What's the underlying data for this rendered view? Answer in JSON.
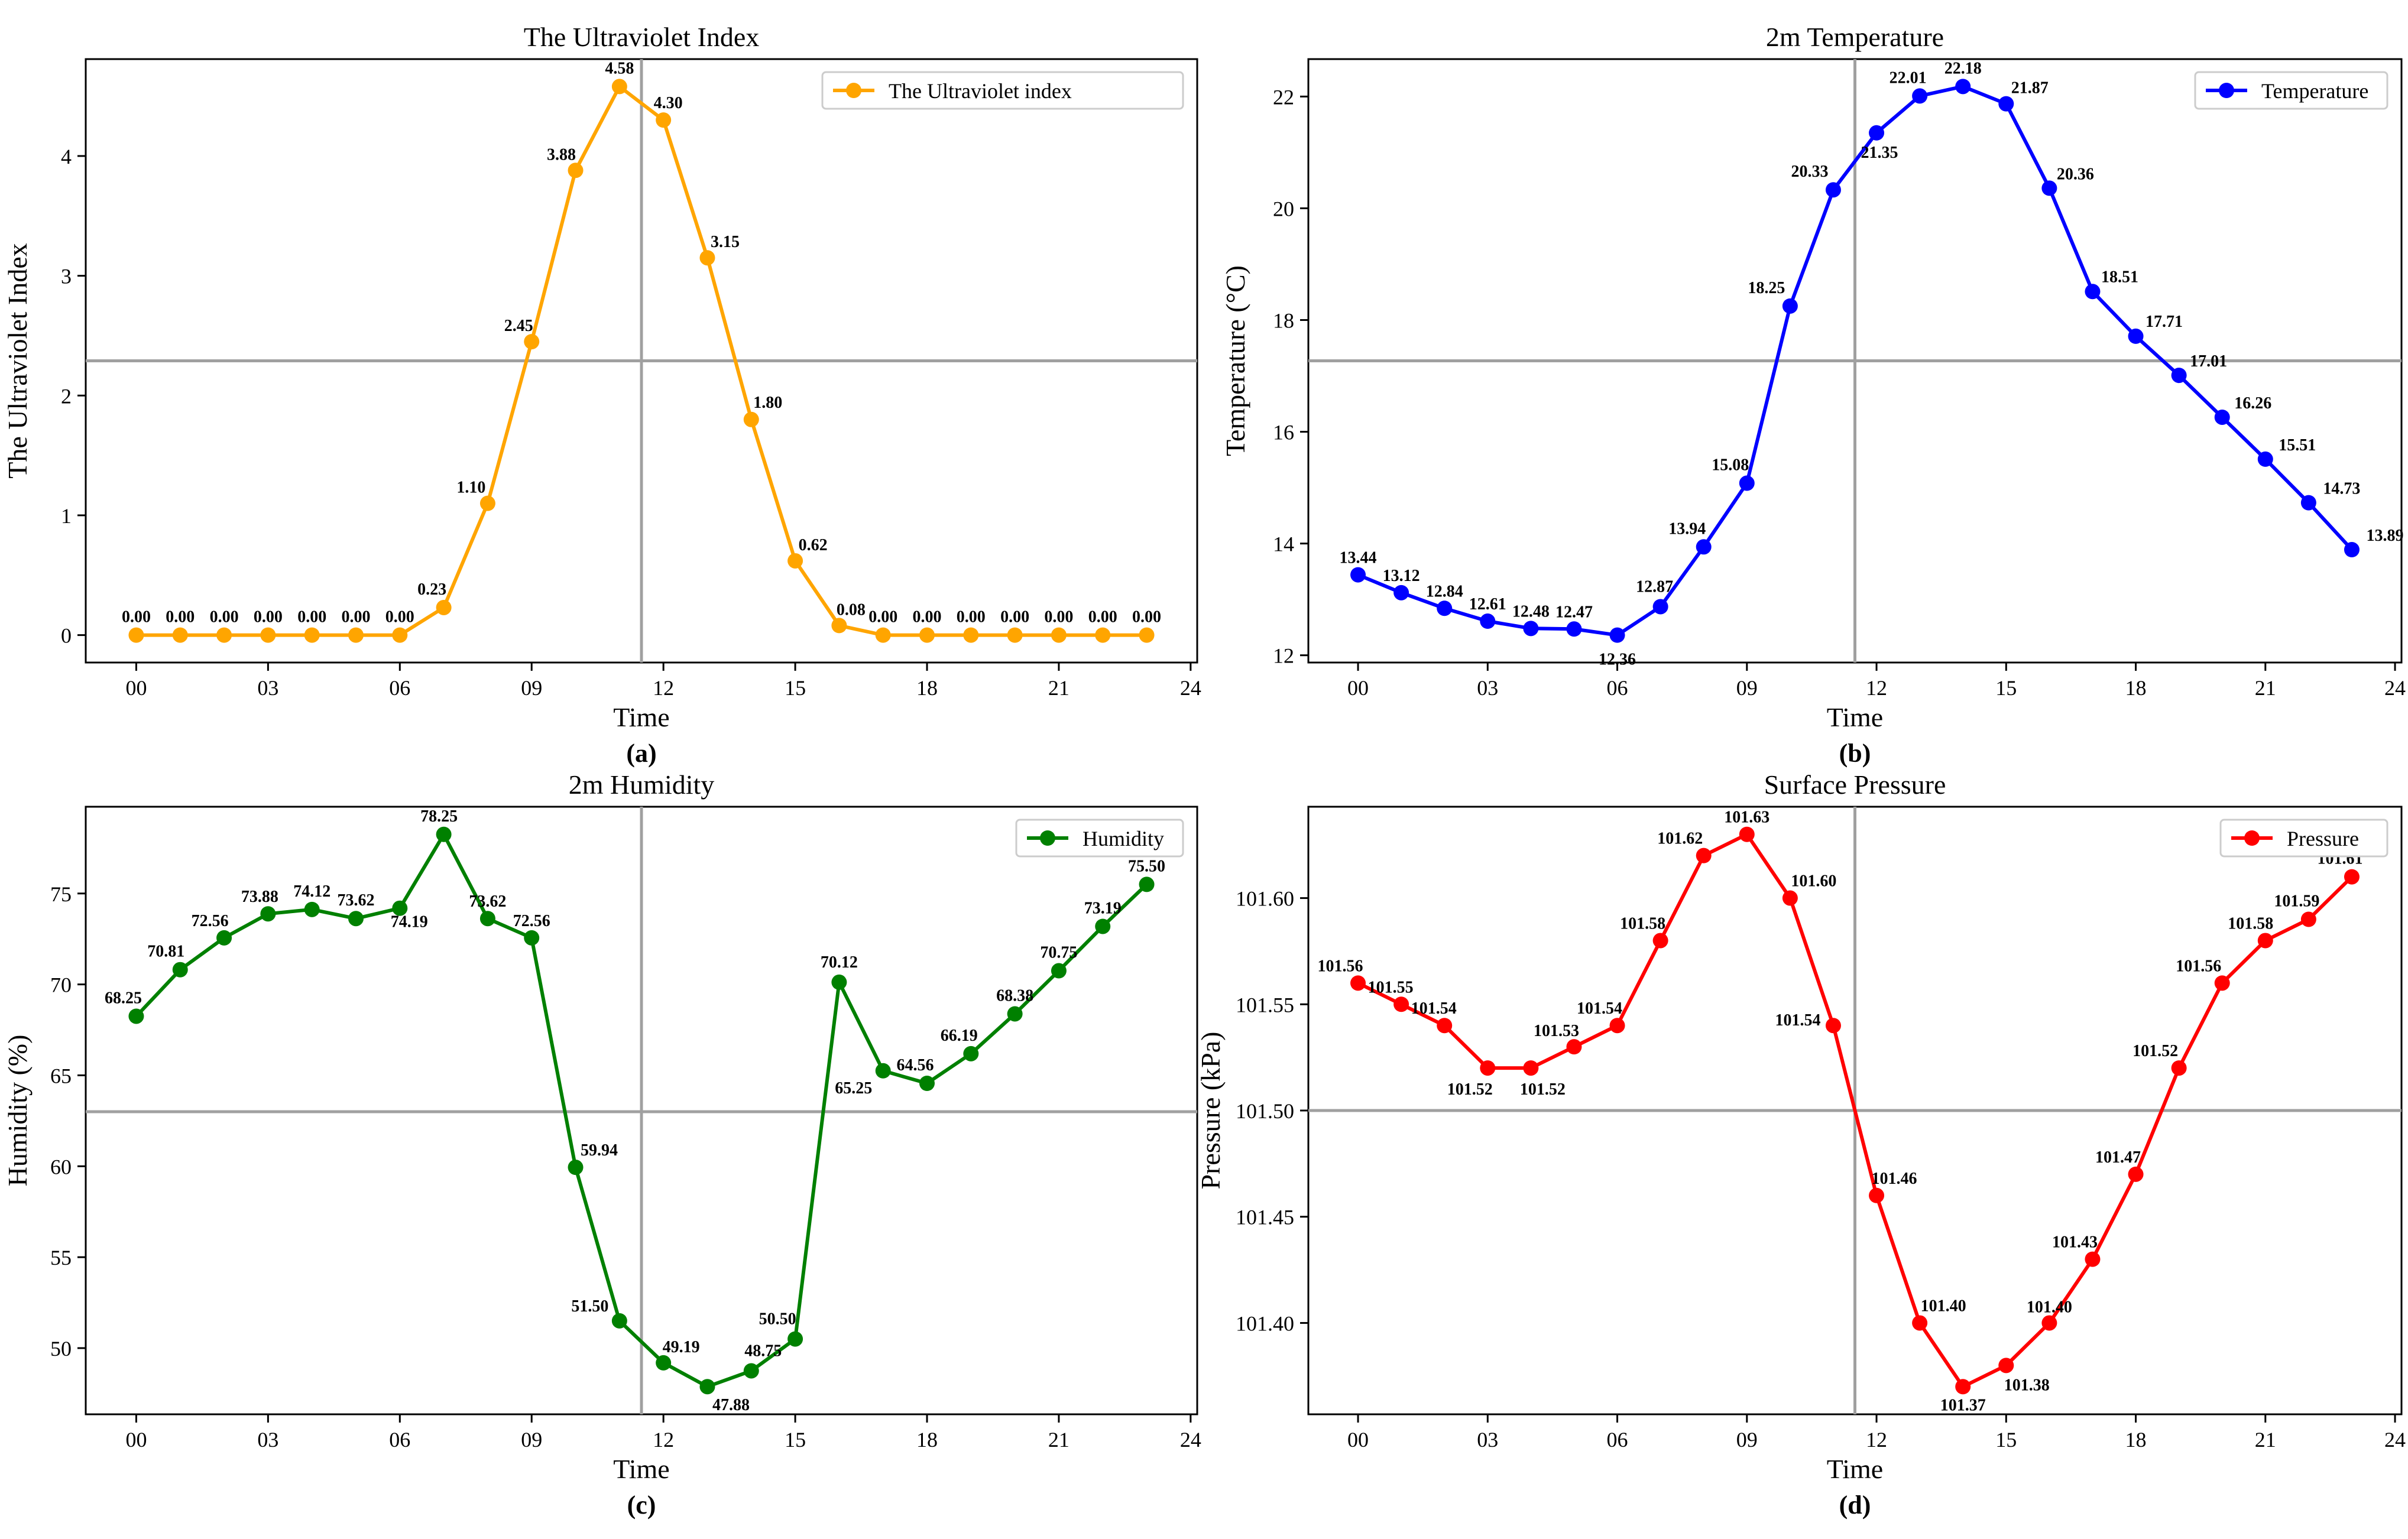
{
  "chart_data": [
    {
      "id": "a",
      "type": "line",
      "title": "The Ultraviolet Index",
      "xlabel": "Time",
      "ylabel": "The Ultraviolet Index",
      "caption": "(a)",
      "legend": "The Ultraviolet index",
      "legend_position": "top-right",
      "color": "#FFA500",
      "x": [
        0,
        1,
        2,
        3,
        4,
        5,
        6,
        7,
        8,
        9,
        10,
        11,
        12,
        13,
        14,
        15,
        16,
        17,
        18,
        19,
        20,
        21,
        22,
        23
      ],
      "values": [
        0.0,
        0.0,
        0.0,
        0.0,
        0.0,
        0.0,
        0.0,
        0.23,
        1.1,
        2.45,
        3.88,
        4.58,
        4.3,
        3.15,
        1.8,
        0.62,
        0.08,
        0.0,
        0.0,
        0.0,
        0.0,
        0.0,
        0.0,
        0.0
      ],
      "labels": [
        "0.00",
        "0.00",
        "0.00",
        "0.00",
        "0.00",
        "0.00",
        "0.00",
        "0.23",
        "1.10",
        "2.45",
        "3.88",
        "4.58",
        "4.30",
        "3.15",
        "1.80",
        "0.62",
        "0.08",
        "0.00",
        "0.00",
        "0.00",
        "0.00",
        "0.00",
        "0.00",
        "0.00"
      ],
      "xlim": [
        -1.15,
        24.15
      ],
      "ylim": [
        -0.229,
        4.809
      ],
      "xticks": [
        0,
        3,
        6,
        9,
        12,
        15,
        18,
        21,
        24
      ],
      "xtick_labels": [
        "00",
        "03",
        "06",
        "09",
        "12",
        "15",
        "18",
        "21",
        "24"
      ],
      "yticks": [
        0,
        1,
        2,
        3,
        4
      ],
      "ytick_labels": [
        "0",
        "1",
        "2",
        "3",
        "4"
      ],
      "crosshair": {
        "x": 11.5,
        "y": 2.29
      }
    },
    {
      "id": "b",
      "type": "line",
      "title": "2m Temperature",
      "xlabel": "Time",
      "ylabel": "Temperature (°C)",
      "caption": "(b)",
      "legend": "Temperature",
      "legend_position": "top-right",
      "color": "#0000FF",
      "x": [
        0,
        1,
        2,
        3,
        4,
        5,
        6,
        7,
        8,
        9,
        10,
        11,
        12,
        13,
        14,
        15,
        16,
        17,
        18,
        19,
        20,
        21,
        22,
        23
      ],
      "values": [
        13.44,
        13.12,
        12.84,
        12.61,
        12.48,
        12.47,
        12.36,
        12.87,
        13.94,
        15.08,
        18.25,
        20.33,
        21.35,
        22.01,
        22.18,
        21.87,
        20.36,
        18.51,
        17.71,
        17.01,
        16.26,
        15.51,
        14.73,
        13.89
      ],
      "labels": [
        "13.44",
        "13.12",
        "12.84",
        "12.61",
        "12.48",
        "12.47",
        "12.36",
        "12.87",
        "13.94",
        "15.08",
        "18.25",
        "20.33",
        "21.35",
        "22.01",
        "22.18",
        "21.87",
        "20.36",
        "18.51",
        "17.71",
        "17.01",
        "16.26",
        "15.51",
        "14.73",
        "13.89"
      ],
      "xlim": [
        -1.15,
        24.15
      ],
      "ylim": [
        11.87,
        22.67
      ],
      "xticks": [
        0,
        3,
        6,
        9,
        12,
        15,
        18,
        21,
        24
      ],
      "xtick_labels": [
        "00",
        "03",
        "06",
        "09",
        "12",
        "15",
        "18",
        "21",
        "24"
      ],
      "yticks": [
        12,
        14,
        16,
        18,
        20,
        22
      ],
      "ytick_labels": [
        "12",
        "14",
        "16",
        "18",
        "20",
        "22"
      ],
      "crosshair": {
        "x": 11.5,
        "y": 17.27
      }
    },
    {
      "id": "c",
      "type": "line",
      "title": "2m Humidity",
      "xlabel": "Time",
      "ylabel": "Humidity (%)",
      "caption": "(c)",
      "legend": "Humidity",
      "legend_position": "top-right",
      "color": "#008000",
      "x": [
        0,
        1,
        2,
        3,
        4,
        5,
        6,
        7,
        8,
        9,
        10,
        11,
        12,
        13,
        14,
        15,
        16,
        17,
        18,
        19,
        20,
        21,
        22,
        23
      ],
      "values": [
        68.25,
        70.81,
        72.56,
        73.88,
        74.12,
        73.62,
        74.19,
        78.25,
        73.62,
        72.56,
        59.94,
        51.5,
        49.19,
        47.88,
        48.75,
        50.5,
        70.12,
        65.25,
        64.56,
        66.19,
        68.38,
        70.75,
        73.19,
        75.5
      ],
      "labels": [
        "68.25",
        "70.81",
        "72.56",
        "73.88",
        "74.12",
        "73.62",
        "74.19",
        "78.25",
        "73.62",
        "72.56",
        "59.94",
        "51.50",
        "49.19",
        "47.88",
        "48.75",
        "50.50",
        "70.12",
        "65.25",
        "64.56",
        "66.19",
        "68.38",
        "70.75",
        "73.19",
        "75.50"
      ],
      "xlim": [
        -1.15,
        24.15
      ],
      "ylim": [
        46.36,
        79.77
      ],
      "xticks": [
        0,
        3,
        6,
        9,
        12,
        15,
        18,
        21,
        24
      ],
      "xtick_labels": [
        "00",
        "03",
        "06",
        "09",
        "12",
        "15",
        "18",
        "21",
        "24"
      ],
      "yticks": [
        50,
        55,
        60,
        65,
        70,
        75
      ],
      "ytick_labels": [
        "50",
        "55",
        "60",
        "65",
        "70",
        "75"
      ],
      "crosshair": {
        "x": 11.5,
        "y": 63.0
      }
    },
    {
      "id": "d",
      "type": "line",
      "title": "Surface Pressure",
      "xlabel": "Time",
      "ylabel": "Pressure (kPa)",
      "caption": "(d)",
      "legend": "Pressure",
      "legend_position": "top-right",
      "color": "#FF0000",
      "x": [
        0,
        1,
        2,
        3,
        4,
        5,
        6,
        7,
        8,
        9,
        10,
        11,
        12,
        13,
        14,
        15,
        16,
        17,
        18,
        19,
        20,
        21,
        22,
        23
      ],
      "values": [
        101.56,
        101.55,
        101.54,
        101.52,
        101.52,
        101.53,
        101.54,
        101.58,
        101.62,
        101.63,
        101.6,
        101.54,
        101.46,
        101.4,
        101.37,
        101.38,
        101.4,
        101.43,
        101.47,
        101.52,
        101.56,
        101.58,
        101.59,
        101.61
      ],
      "labels": [
        "101.56",
        "101.55",
        "101.54",
        "101.52",
        "101.52",
        "101.53",
        "101.54",
        "101.58",
        "101.62",
        "101.63",
        "101.60",
        "101.54",
        "101.46",
        "101.40",
        "101.37",
        "101.38",
        "101.40",
        "101.43",
        "101.47",
        "101.52",
        "101.56",
        "101.58",
        "101.59",
        "101.61"
      ],
      "xlim": [
        -1.15,
        24.15
      ],
      "ylim": [
        101.357,
        101.643
      ],
      "xticks": [
        0,
        3,
        6,
        9,
        12,
        15,
        18,
        21,
        24
      ],
      "xtick_labels": [
        "00",
        "03",
        "06",
        "09",
        "12",
        "15",
        "18",
        "21",
        "24"
      ],
      "yticks": [
        101.4,
        101.45,
        101.5,
        101.55,
        101.6
      ],
      "ytick_labels": [
        "101.40",
        "101.45",
        "101.50",
        "101.55",
        "101.60"
      ],
      "crosshair": {
        "x": 11.5,
        "y": 101.5
      }
    }
  ]
}
